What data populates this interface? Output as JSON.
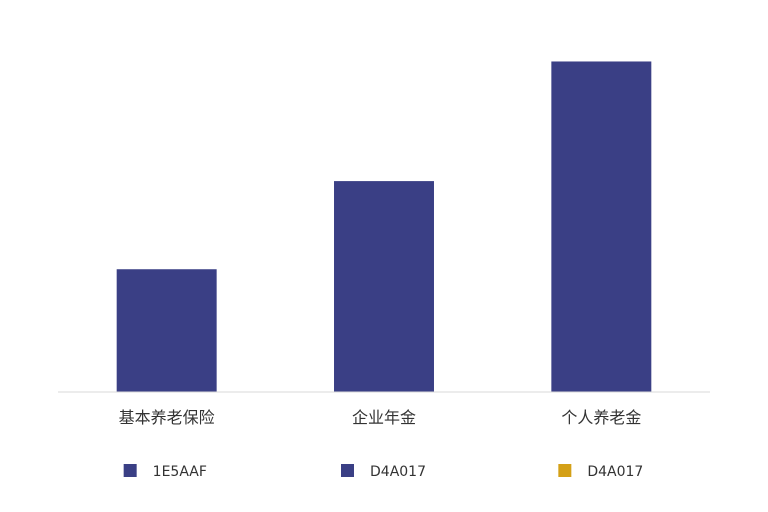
{
  "chart_data": {
    "type": "bar",
    "categories": [
      "基本养老保险",
      "企业年金",
      "个人养老金"
    ],
    "values": [
      3.9,
      6.7,
      10.5
    ],
    "ylim": [
      0,
      11.5
    ],
    "colors": [
      "#3a3f85",
      "#3a3f85",
      "#3a3f85"
    ],
    "grid": false,
    "axis_line": "x-only",
    "legend": {
      "position": "bottom",
      "items": [
        {
          "label": "1E5AAF",
          "color": "#3a3f85"
        },
        {
          "label": "D4A017",
          "color": "#3a3f85"
        },
        {
          "label": "D4A017",
          "color": "#d4a017"
        }
      ]
    }
  }
}
